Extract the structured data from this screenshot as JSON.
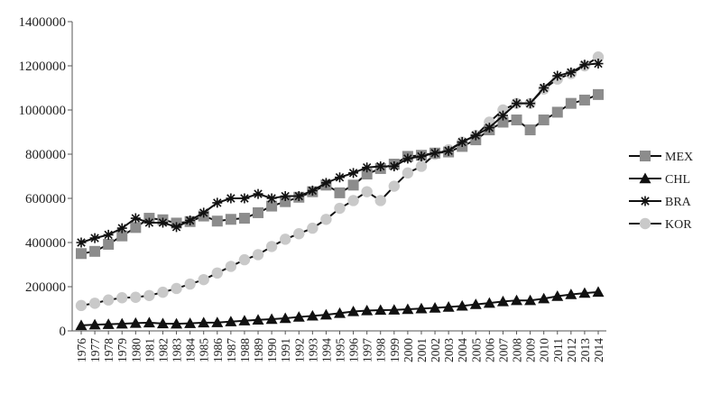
{
  "chart_data": {
    "type": "line",
    "x": [
      1976,
      1977,
      1978,
      1979,
      1980,
      1981,
      1982,
      1983,
      1984,
      1985,
      1986,
      1987,
      1988,
      1989,
      1990,
      1991,
      1992,
      1993,
      1994,
      1995,
      1996,
      1997,
      1998,
      1999,
      2000,
      2001,
      2002,
      2003,
      2004,
      2005,
      2006,
      2007,
      2008,
      2009,
      2010,
      2011,
      2012,
      2013,
      2014
    ],
    "x_tick_labels": [
      "1976",
      "1977",
      "1978",
      "1979",
      "1980",
      "1981",
      "1982",
      "1983",
      "1984",
      "1985",
      "1986",
      "1987",
      "1988",
      "1989",
      "1990",
      "1991",
      "1992",
      "1993",
      "1994",
      "1995",
      "1996",
      "1997",
      "1998",
      "1999",
      "2000",
      "2001",
      "2002",
      "2003",
      "2004",
      "2005",
      "2006",
      "2007",
      "2008",
      "2009",
      "2010",
      "2011",
      "2012",
      "2013",
      "2014"
    ],
    "y_ticks": [
      0,
      200000,
      400000,
      600000,
      800000,
      1000000,
      1200000,
      1400000
    ],
    "y_tick_labels": [
      "0",
      "200000",
      "400000",
      "600000",
      "800000",
      "1000000",
      "1200000",
      "1400000"
    ],
    "ylim": [
      0,
      1400000
    ],
    "grid": false,
    "legend": "right",
    "series": [
      {
        "name": "MEX",
        "marker": "square",
        "color": "#8c8c8c",
        "values": [
          350000,
          360000,
          392000,
          430000,
          468000,
          510000,
          503000,
          488000,
          495000,
          520000,
          497000,
          505000,
          510000,
          535000,
          565000,
          585000,
          605000,
          630000,
          660000,
          625000,
          660000,
          710000,
          735000,
          755000,
          790000,
          795000,
          805000,
          810000,
          835000,
          865000,
          910000,
          945000,
          955000,
          910000,
          955000,
          990000,
          1030000,
          1045000,
          1070000
        ]
      },
      {
        "name": "CHL",
        "marker": "triangle",
        "color": "#111111",
        "values": [
          25000,
          28000,
          30000,
          32000,
          35000,
          37000,
          33000,
          32000,
          34000,
          37000,
          38000,
          42000,
          46000,
          50000,
          53000,
          57000,
          63000,
          68000,
          73000,
          80000,
          88000,
          92000,
          94000,
          95000,
          98000,
          101000,
          104000,
          108000,
          113000,
          120000,
          126000,
          133000,
          138000,
          138000,
          146000,
          157000,
          165000,
          171000,
          176000
        ]
      },
      {
        "name": "BRA",
        "marker": "star",
        "color": "#111111",
        "values": [
          400000,
          420000,
          435000,
          465000,
          510000,
          490000,
          490000,
          470000,
          500000,
          535000,
          580000,
          600000,
          600000,
          620000,
          600000,
          610000,
          610000,
          635000,
          670000,
          695000,
          715000,
          740000,
          745000,
          745000,
          780000,
          790000,
          805000,
          815000,
          855000,
          885000,
          920000,
          975000,
          1030000,
          1030000,
          1100000,
          1155000,
          1170000,
          1205000,
          1210000
        ]
      },
      {
        "name": "KOR",
        "marker": "circle",
        "color": "#c9c9c9",
        "values": [
          115000,
          125000,
          140000,
          150000,
          152000,
          160000,
          175000,
          192000,
          212000,
          232000,
          262000,
          292000,
          322000,
          345000,
          382000,
          415000,
          440000,
          465000,
          505000,
          555000,
          590000,
          630000,
          590000,
          655000,
          715000,
          745000,
          800000,
          820000,
          855000,
          885000,
          945000,
          1000000,
          1030000,
          1030000,
          1095000,
          1140000,
          1165000,
          1200000,
          1240000
        ]
      }
    ]
  }
}
